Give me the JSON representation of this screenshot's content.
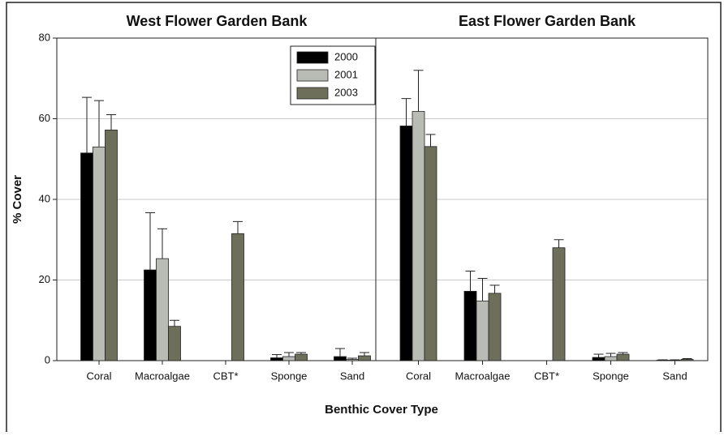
{
  "chart_data": [
    {
      "type": "bar",
      "title": "West Flower Garden Bank",
      "y_label": "% Cover",
      "x_label": "Benthic Cover Type",
      "categories": [
        "Coral",
        "Macroalgae",
        "CBT*",
        "Sponge",
        "Sand"
      ],
      "ylim": [
        0,
        80
      ],
      "yticks": [
        0,
        20,
        40,
        60,
        80
      ],
      "grid": true,
      "legend": "upper-right",
      "series": [
        {
          "name": "2000",
          "color": "#000000",
          "values": [
            51.5,
            22.5,
            null,
            0.7,
            1.0
          ],
          "errors": [
            13.8,
            14.2,
            null,
            0.8,
            2.0
          ]
        },
        {
          "name": "2001",
          "color": "#b9bcb4",
          "values": [
            53.0,
            25.3,
            null,
            1.0,
            0.3
          ],
          "errors": [
            11.5,
            7.4,
            null,
            1.0,
            0.3
          ]
        },
        {
          "name": "2003",
          "color": "#6e6f5a",
          "values": [
            57.2,
            8.5,
            31.5,
            1.6,
            1.2
          ],
          "errors": [
            3.8,
            1.5,
            3.0,
            0.4,
            0.8
          ]
        }
      ]
    },
    {
      "type": "bar",
      "title": "East Flower Garden Bank",
      "categories": [
        "Coral",
        "Macroalgae",
        "CBT*",
        "Sponge",
        "Sand"
      ],
      "ylim": [
        0,
        80
      ],
      "yticks": [
        0,
        20,
        40,
        60,
        80
      ],
      "grid": true,
      "series": [
        {
          "color": "#000000",
          "values": [
            58.2,
            17.2,
            null,
            0.8,
            0.1
          ],
          "errors": [
            6.8,
            5.0,
            null,
            0.8,
            0.1
          ]
        },
        {
          "color": "#b9bcb4",
          "values": [
            61.8,
            14.8,
            null,
            1.0,
            0.1
          ],
          "errors": [
            10.2,
            5.6,
            null,
            0.8,
            0.1
          ]
        },
        {
          "color": "#6e6f5a",
          "values": [
            53.1,
            16.7,
            28.0,
            1.6,
            0.3
          ],
          "errors": [
            3.0,
            2.0,
            2.0,
            0.4,
            0.2
          ]
        }
      ]
    }
  ]
}
